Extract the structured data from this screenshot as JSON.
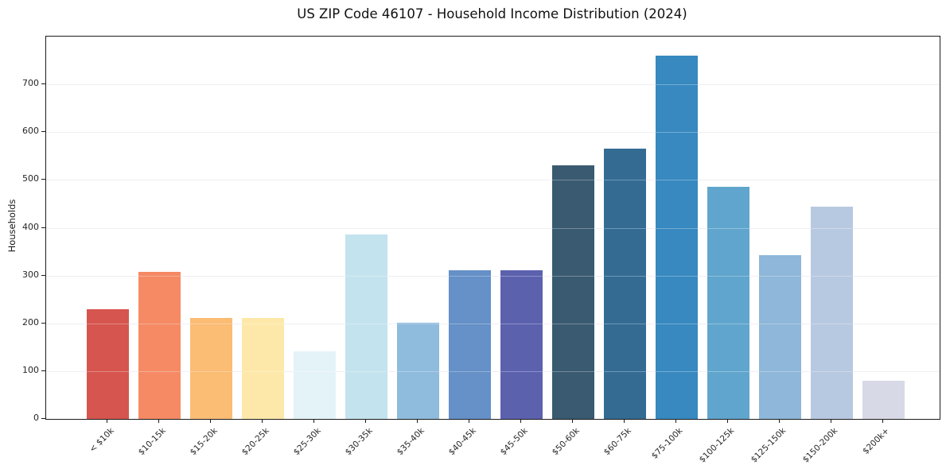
{
  "title": "US ZIP Code 46107 - Household Income Distribution (2024)",
  "chart_data": {
    "type": "bar",
    "title": "US ZIP Code 46107 - Household Income Distribution (2024)",
    "xlabel": "",
    "ylabel": "Households",
    "categories": [
      "< $10k",
      "$10-15k",
      "$15-20k",
      "$20-25k",
      "$25-30k",
      "$30-35k",
      "$35-40k",
      "$40-45k",
      "$45-50k",
      "$50-60k",
      "$60-75k",
      "$75-100k",
      "$100-125k",
      "$125-150k",
      "$150-200k",
      "$200k+"
    ],
    "values": [
      229,
      307,
      212,
      212,
      142,
      386,
      202,
      311,
      311,
      531,
      565,
      760,
      486,
      343,
      444,
      80
    ],
    "bar_colors": [
      "#d7554f",
      "#f58a64",
      "#fbbc74",
      "#fde8a9",
      "#e4f3f8",
      "#c3e3ee",
      "#8fbbdd",
      "#6590c8",
      "#5c61ae",
      "#395a70",
      "#336b93",
      "#3789c0",
      "#60a5cd",
      "#8eb7d9",
      "#b7c9e0",
      "#d7d9e6"
    ],
    "ylim": [
      0,
      800
    ],
    "yticks": [
      0,
      100,
      200,
      300,
      400,
      500,
      600,
      700
    ],
    "grid": "horizontal",
    "gridline_color": "#e9e9f0",
    "legend": "none",
    "plot_background": "#ffffff",
    "spine_color": "#1c1c1c"
  }
}
